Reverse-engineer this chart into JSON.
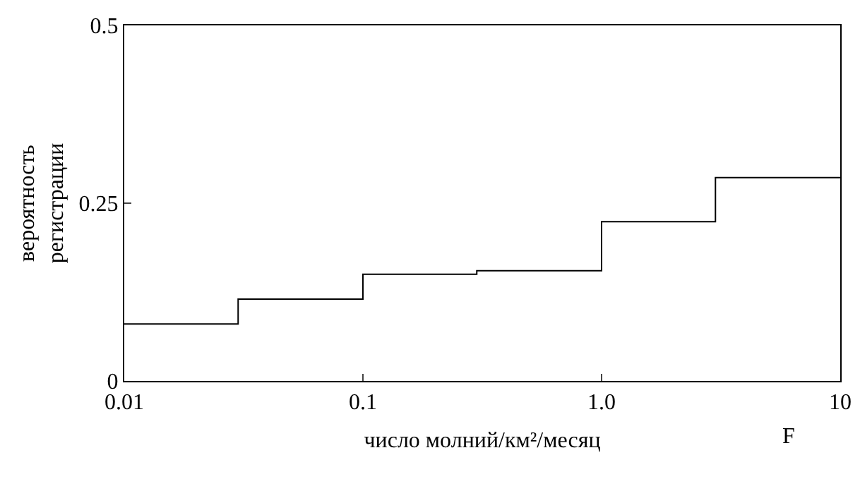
{
  "chart_data": {
    "type": "histogram",
    "xlabel": "число молний/км²/месяц",
    "ylabel": "вероятность\nрегистрации",
    "bins": [
      0.01,
      0.03,
      0.1,
      0.3,
      1,
      3,
      10
    ],
    "values": [
      0.08,
      0.115,
      0.15,
      0.155,
      0.224,
      0.286
    ],
    "color": "#000000",
    "log": "x",
    "xlim": [
      0.01,
      10
    ],
    "xticks": [
      0.01,
      0.1,
      {
        "value": 1,
        "label": "1.0"
      },
      10
    ],
    "ylim": [
      0,
      0.5
    ],
    "yticks": [
      0,
      0.25,
      0.5
    ],
    "grid": false,
    "annotations": [
      "F"
    ]
  }
}
